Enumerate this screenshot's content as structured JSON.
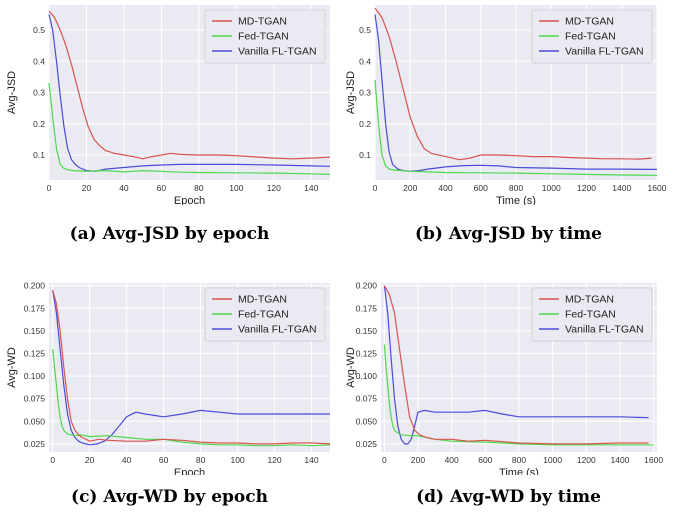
{
  "colors": {
    "md": "#d9534f",
    "fed": "#4cd94c",
    "fl": "#4b4bd9",
    "plot_bg": "#eaeaf2",
    "grid": "#ffffff"
  },
  "chart_data": [
    {
      "type": "line",
      "caption": "(a) Avg-JSD by epoch",
      "xlabel": "Epoch",
      "ylabel": "Avg-JSD",
      "xlim": [
        0,
        150
      ],
      "ylim": [
        0.02,
        0.58
      ],
      "xticks": [
        0,
        20,
        40,
        60,
        80,
        100,
        120,
        140
      ],
      "yticks": [
        0.1,
        0.2,
        0.3,
        0.4,
        0.5
      ],
      "ytick_labels": [
        "0.1",
        "0.2",
        "0.3",
        "0.4",
        "0.5"
      ],
      "grid": true,
      "legend": "top-right",
      "series": [
        {
          "name": "MD-TGAN",
          "color_key": "md",
          "x": [
            0,
            3,
            6,
            9,
            12,
            15,
            18,
            21,
            24,
            27,
            30,
            35,
            40,
            45,
            50,
            55,
            60,
            65,
            70,
            80,
            90,
            100,
            110,
            120,
            130,
            140,
            150
          ],
          "y": [
            0.56,
            0.54,
            0.5,
            0.45,
            0.39,
            0.32,
            0.25,
            0.19,
            0.15,
            0.13,
            0.115,
            0.105,
            0.1,
            0.095,
            0.088,
            0.095,
            0.1,
            0.105,
            0.102,
            0.1,
            0.1,
            0.098,
            0.094,
            0.09,
            0.088,
            0.09,
            0.093
          ]
        },
        {
          "name": "Fed-TGAN",
          "color_key": "fed",
          "x": [
            0,
            2,
            4,
            6,
            8,
            10,
            13,
            16,
            20,
            30,
            40,
            50,
            60,
            70,
            80,
            100,
            120,
            140,
            150
          ],
          "y": [
            0.33,
            0.22,
            0.12,
            0.07,
            0.057,
            0.053,
            0.05,
            0.049,
            0.048,
            0.05,
            0.046,
            0.05,
            0.048,
            0.045,
            0.044,
            0.043,
            0.042,
            0.04,
            0.038
          ]
        },
        {
          "name": "Vanilla FL-TGAN",
          "color_key": "fl",
          "x": [
            0,
            2,
            4,
            6,
            8,
            10,
            12,
            14,
            16,
            18,
            20,
            25,
            30,
            40,
            50,
            60,
            70,
            80,
            100,
            120,
            140,
            150
          ],
          "y": [
            0.55,
            0.5,
            0.4,
            0.29,
            0.19,
            0.12,
            0.085,
            0.07,
            0.06,
            0.055,
            0.05,
            0.048,
            0.055,
            0.06,
            0.065,
            0.068,
            0.07,
            0.07,
            0.07,
            0.068,
            0.065,
            0.064
          ]
        }
      ]
    },
    {
      "type": "line",
      "caption": "(b) Avg-JSD by time",
      "xlabel": "Time (s)",
      "ylabel": "Avg-JSD",
      "xlim": [
        0,
        1600
      ],
      "ylim": [
        0.02,
        0.58
      ],
      "xticks": [
        0,
        200,
        400,
        600,
        800,
        1000,
        1200,
        1400,
        1600
      ],
      "yticks": [
        0.1,
        0.2,
        0.3,
        0.4,
        0.5
      ],
      "ytick_labels": [
        "0.1",
        "0.2",
        "0.3",
        "0.4",
        "0.5"
      ],
      "grid": true,
      "legend": "top-right",
      "series": [
        {
          "name": "MD-TGAN",
          "color_key": "md",
          "x": [
            0,
            40,
            80,
            120,
            160,
            200,
            240,
            280,
            320,
            400,
            480,
            540,
            600,
            700,
            800,
            900,
            1000,
            1100,
            1200,
            1300,
            1400,
            1500,
            1570
          ],
          "y": [
            0.57,
            0.54,
            0.48,
            0.4,
            0.31,
            0.22,
            0.16,
            0.12,
            0.105,
            0.095,
            0.085,
            0.09,
            0.1,
            0.1,
            0.098,
            0.095,
            0.095,
            0.092,
            0.09,
            0.088,
            0.088,
            0.087,
            0.09
          ]
        },
        {
          "name": "Fed-TGAN",
          "color_key": "fed",
          "x": [
            0,
            20,
            40,
            60,
            80,
            100,
            150,
            200,
            300,
            400,
            600,
            800,
            1000,
            1200,
            1400,
            1600
          ],
          "y": [
            0.34,
            0.2,
            0.1,
            0.065,
            0.055,
            0.052,
            0.05,
            0.048,
            0.046,
            0.044,
            0.043,
            0.042,
            0.04,
            0.038,
            0.036,
            0.035
          ]
        },
        {
          "name": "Vanilla FL-TGAN",
          "color_key": "fl",
          "x": [
            0,
            20,
            40,
            60,
            80,
            100,
            130,
            160,
            200,
            250,
            300,
            400,
            500,
            600,
            700,
            800,
            1000,
            1200,
            1400,
            1600
          ],
          "y": [
            0.55,
            0.47,
            0.34,
            0.2,
            0.11,
            0.07,
            0.055,
            0.05,
            0.048,
            0.05,
            0.055,
            0.062,
            0.066,
            0.067,
            0.065,
            0.06,
            0.058,
            0.055,
            0.055,
            0.054
          ]
        }
      ]
    },
    {
      "type": "line",
      "caption": "(c) Avg-WD by epoch",
      "xlabel": "Epoch",
      "ylabel": "Avg-WD",
      "xlim": [
        -2,
        150
      ],
      "ylim": [
        0.016,
        0.203
      ],
      "xticks": [
        0,
        20,
        40,
        60,
        80,
        100,
        120,
        140
      ],
      "yticks": [
        0.025,
        0.05,
        0.075,
        0.1,
        0.125,
        0.15,
        0.175,
        0.2
      ],
      "ytick_labels": [
        "0.025",
        "0.050",
        "0.075",
        "0.100",
        "0.125",
        "0.150",
        "0.175",
        "0.200"
      ],
      "grid": true,
      "legend": "top-right",
      "series": [
        {
          "name": "MD-TGAN",
          "color_key": "md",
          "x": [
            0,
            2,
            4,
            6,
            8,
            10,
            12,
            14,
            16,
            18,
            20,
            25,
            30,
            40,
            50,
            60,
            70,
            80,
            90,
            100,
            110,
            120,
            130,
            140,
            150
          ],
          "y": [
            0.195,
            0.18,
            0.15,
            0.11,
            0.075,
            0.05,
            0.04,
            0.035,
            0.032,
            0.03,
            0.028,
            0.03,
            0.029,
            0.028,
            0.028,
            0.03,
            0.029,
            0.027,
            0.026,
            0.026,
            0.025,
            0.025,
            0.026,
            0.026,
            0.025
          ]
        },
        {
          "name": "Fed-TGAN",
          "color_key": "fed",
          "x": [
            0,
            1,
            2,
            3,
            4,
            5,
            6,
            8,
            10,
            12,
            15,
            20,
            30,
            40,
            50,
            60,
            70,
            80,
            90,
            100,
            110,
            120,
            130,
            140,
            150
          ],
          "y": [
            0.13,
            0.11,
            0.09,
            0.07,
            0.055,
            0.045,
            0.04,
            0.036,
            0.035,
            0.034,
            0.035,
            0.033,
            0.034,
            0.032,
            0.03,
            0.03,
            0.027,
            0.025,
            0.024,
            0.024,
            0.023,
            0.023,
            0.024,
            0.023,
            0.024
          ]
        },
        {
          "name": "Vanilla FL-TGAN",
          "color_key": "fl",
          "x": [
            0,
            2,
            4,
            6,
            8,
            10,
            12,
            14,
            16,
            18,
            20,
            24,
            28,
            32,
            36,
            40,
            45,
            50,
            60,
            70,
            80,
            90,
            100,
            110,
            120,
            130,
            140,
            150
          ],
          "y": [
            0.195,
            0.17,
            0.13,
            0.09,
            0.058,
            0.04,
            0.032,
            0.028,
            0.026,
            0.025,
            0.024,
            0.025,
            0.028,
            0.035,
            0.045,
            0.055,
            0.06,
            0.058,
            0.055,
            0.058,
            0.062,
            0.06,
            0.058,
            0.058,
            0.058,
            0.058,
            0.058,
            0.058
          ]
        }
      ]
    },
    {
      "type": "line",
      "caption": "(d) Avg-WD by time",
      "xlabel": "Time (s)",
      "ylabel": "Avg-WD",
      "xlim": [
        -20,
        1620
      ],
      "ylim": [
        0.016,
        0.203
      ],
      "xticks": [
        0,
        200,
        400,
        600,
        800,
        1000,
        1200,
        1400,
        1600
      ],
      "yticks": [
        0.025,
        0.05,
        0.075,
        0.1,
        0.125,
        0.15,
        0.175,
        0.2
      ],
      "ytick_labels": [
        "0.025",
        "0.050",
        "0.075",
        "0.100",
        "0.125",
        "0.150",
        "0.175",
        "0.200"
      ],
      "grid": true,
      "legend": "top-right",
      "series": [
        {
          "name": "MD-TGAN",
          "color_key": "md",
          "x": [
            0,
            30,
            60,
            90,
            120,
            150,
            180,
            210,
            250,
            300,
            400,
            500,
            600,
            800,
            1000,
            1200,
            1400,
            1570
          ],
          "y": [
            0.2,
            0.19,
            0.17,
            0.13,
            0.09,
            0.055,
            0.04,
            0.035,
            0.032,
            0.03,
            0.03,
            0.028,
            0.029,
            0.026,
            0.025,
            0.025,
            0.026,
            0.026
          ]
        },
        {
          "name": "Fed-TGAN",
          "color_key": "fed",
          "x": [
            0,
            10,
            20,
            30,
            40,
            50,
            60,
            80,
            100,
            150,
            200,
            300,
            400,
            600,
            800,
            1000,
            1200,
            1400,
            1600
          ],
          "y": [
            0.135,
            0.11,
            0.09,
            0.07,
            0.055,
            0.045,
            0.04,
            0.037,
            0.035,
            0.034,
            0.034,
            0.03,
            0.028,
            0.027,
            0.025,
            0.024,
            0.024,
            0.024,
            0.024
          ]
        },
        {
          "name": "Vanilla FL-TGAN",
          "color_key": "fl",
          "x": [
            0,
            20,
            40,
            60,
            80,
            100,
            120,
            140,
            160,
            180,
            200,
            240,
            300,
            400,
            500,
            600,
            700,
            800,
            1000,
            1200,
            1400,
            1570
          ],
          "y": [
            0.2,
            0.17,
            0.12,
            0.075,
            0.045,
            0.03,
            0.025,
            0.025,
            0.03,
            0.045,
            0.06,
            0.062,
            0.06,
            0.06,
            0.06,
            0.062,
            0.058,
            0.055,
            0.055,
            0.055,
            0.055,
            0.054
          ]
        }
      ]
    }
  ]
}
